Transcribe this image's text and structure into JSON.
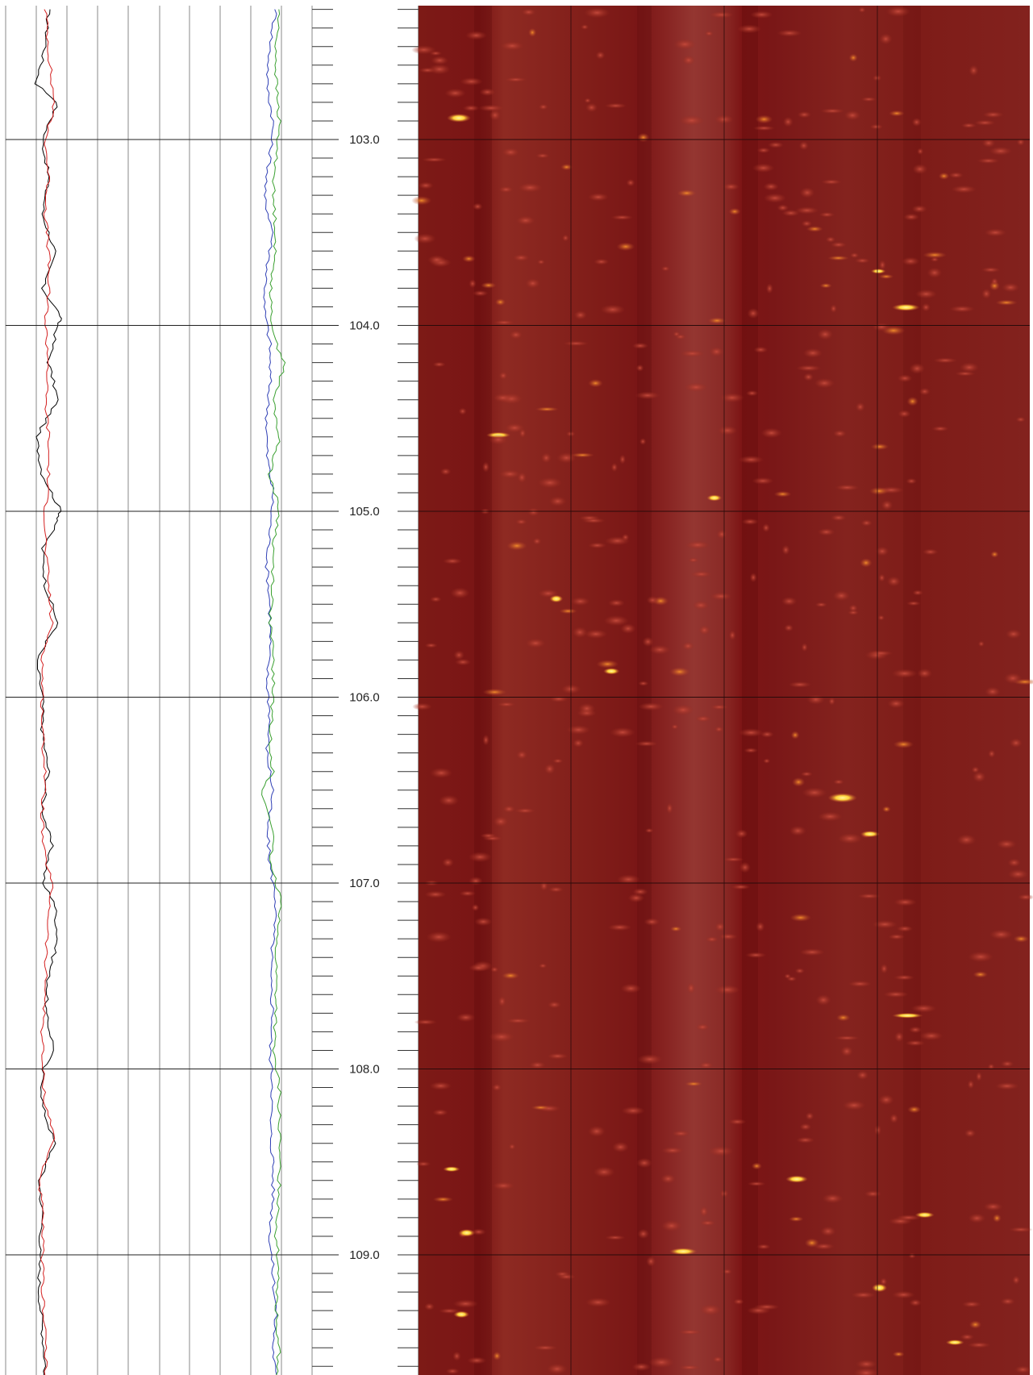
{
  "chart_data": [
    {
      "type": "line",
      "track": "curve-track-1",
      "y_axis": "depth",
      "depth_range": [
        102.26,
        110.0
      ],
      "grid": true,
      "series": [
        {
          "color": "#000000",
          "depth": [
            102.3,
            102.5,
            102.7,
            102.8,
            103.0,
            103.2,
            103.4,
            103.6,
            103.8,
            103.95,
            104.0,
            104.2,
            104.4,
            104.6,
            104.8,
            105.0,
            105.05,
            105.2,
            105.4,
            105.6,
            105.8,
            106.0,
            106.2,
            106.4,
            106.6,
            106.8,
            107.0,
            107.1,
            107.3,
            107.5,
            107.7,
            107.9,
            108.0,
            108.2,
            108.4,
            108.6,
            108.8,
            109.0,
            109.2,
            109.4,
            109.6,
            109.8,
            110.0
          ],
          "values": [
            0.14,
            0.13,
            0.1,
            0.17,
            0.12,
            0.14,
            0.12,
            0.16,
            0.12,
            0.18,
            0.17,
            0.14,
            0.17,
            0.1,
            0.12,
            0.18,
            0.17,
            0.12,
            0.13,
            0.17,
            0.1,
            0.12,
            0.12,
            0.14,
            0.12,
            0.15,
            0.12,
            0.16,
            0.17,
            0.14,
            0.13,
            0.16,
            0.12,
            0.12,
            0.16,
            0.11,
            0.12,
            0.11,
            0.11,
            0.12,
            0.13,
            0.11,
            0.12
          ]
        },
        {
          "color": "#d42020",
          "depth": [
            102.3,
            102.5,
            102.7,
            102.8,
            103.0,
            103.2,
            103.4,
            103.6,
            103.8,
            104.0,
            104.2,
            104.4,
            104.6,
            104.8,
            105.0,
            105.2,
            105.4,
            105.6,
            105.8,
            106.0,
            106.2,
            106.4,
            106.6,
            106.8,
            107.0,
            107.2,
            107.4,
            107.6,
            107.8,
            108.0,
            108.2,
            108.35,
            108.6,
            108.8,
            109.0,
            109.2,
            109.4,
            109.6,
            109.8,
            110.0
          ],
          "values": [
            0.13,
            0.14,
            0.15,
            0.16,
            0.13,
            0.14,
            0.13,
            0.14,
            0.14,
            0.13,
            0.14,
            0.13,
            0.14,
            0.14,
            0.13,
            0.13,
            0.14,
            0.15,
            0.12,
            0.12,
            0.12,
            0.13,
            0.12,
            0.12,
            0.15,
            0.14,
            0.13,
            0.13,
            0.12,
            0.12,
            0.13,
            0.16,
            0.11,
            0.12,
            0.12,
            0.12,
            0.13,
            0.13,
            0.12,
            0.13
          ]
        }
      ]
    },
    {
      "type": "line",
      "track": "curve-track-2",
      "y_axis": "depth",
      "depth_range": [
        102.26,
        110.0
      ],
      "grid": true,
      "series": [
        {
          "color": "#2f3fb5",
          "depth": [
            102.3,
            102.5,
            102.7,
            102.9,
            103.1,
            103.3,
            103.5,
            103.7,
            103.9,
            104.1,
            104.3,
            104.5,
            104.7,
            104.9,
            105.1,
            105.3,
            105.5,
            105.7,
            105.9,
            106.1,
            106.3,
            106.5,
            106.7,
            106.9,
            107.1,
            107.3,
            107.5,
            107.7,
            107.9,
            108.1,
            108.3,
            108.5,
            108.7,
            108.9,
            109.1,
            109.3,
            109.5,
            109.7,
            109.9,
            110.0
          ],
          "values": [
            0.38,
            0.36,
            0.35,
            0.37,
            0.36,
            0.34,
            0.37,
            0.35,
            0.34,
            0.36,
            0.36,
            0.35,
            0.35,
            0.37,
            0.36,
            0.35,
            0.36,
            0.36,
            0.35,
            0.36,
            0.35,
            0.37,
            0.35,
            0.36,
            0.38,
            0.37,
            0.36,
            0.37,
            0.36,
            0.37,
            0.36,
            0.37,
            0.37,
            0.36,
            0.37,
            0.38,
            0.37,
            0.38,
            0.37,
            0.38
          ]
        },
        {
          "color": "#3aa030",
          "depth": [
            102.3,
            102.5,
            102.7,
            102.9,
            103.1,
            103.3,
            103.5,
            103.7,
            103.9,
            104.1,
            104.2,
            104.4,
            104.6,
            104.8,
            105.0,
            105.2,
            105.4,
            105.6,
            105.8,
            106.0,
            106.2,
            106.4,
            106.5,
            106.7,
            106.9,
            107.1,
            107.3,
            107.5,
            107.7,
            107.9,
            108.1,
            108.3,
            108.5,
            108.7,
            108.9,
            109.1,
            109.3,
            109.5,
            109.7,
            109.9,
            110.0
          ],
          "values": [
            0.39,
            0.38,
            0.38,
            0.39,
            0.38,
            0.37,
            0.38,
            0.37,
            0.36,
            0.38,
            0.41,
            0.37,
            0.39,
            0.36,
            0.39,
            0.37,
            0.37,
            0.36,
            0.37,
            0.37,
            0.36,
            0.37,
            0.33,
            0.37,
            0.36,
            0.4,
            0.38,
            0.38,
            0.38,
            0.37,
            0.39,
            0.39,
            0.39,
            0.39,
            0.38,
            0.39,
            0.38,
            0.39,
            0.38,
            0.39,
            0.38
          ]
        }
      ]
    },
    {
      "type": "heatmap",
      "track": "image-track",
      "colormap": [
        "#7c1616",
        "#9a2a1e",
        "#c84a2a",
        "#f08a2a",
        "#ffd33a",
        "#fff6a0"
      ],
      "depth_range": [
        102.26,
        110.0
      ]
    }
  ],
  "depth_axis": {
    "major_labels": [
      "103.0",
      "104.0",
      "105.0",
      "106.0",
      "107.0",
      "108.0",
      "109.0"
    ],
    "major_depths": [
      103.0,
      104.0,
      105.0,
      106.0,
      107.0,
      108.0,
      109.0
    ],
    "minor_step": 0.1,
    "range": [
      102.26,
      110.0
    ]
  }
}
